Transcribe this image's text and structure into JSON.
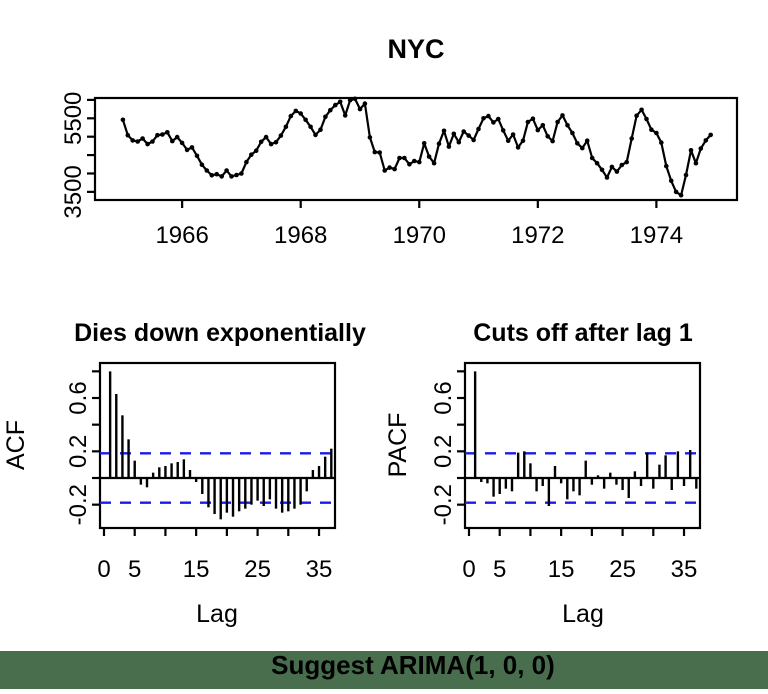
{
  "page": {
    "note_text": "Suggest ARIMA(1, 0, 0)",
    "note_color": "#e32222",
    "banner_color": "#486e4e",
    "background": "#ffffff"
  },
  "colors": {
    "series": "#000000",
    "conf_band": "#1a1aee",
    "red_text": "#e32222"
  },
  "chart_data": [
    {
      "id": "top_chart",
      "type": "line",
      "title": "NYC",
      "xlabel": "",
      "ylabel": "",
      "x_tick_labels": [
        "1966",
        "1968",
        "1970",
        "1972",
        "1974"
      ],
      "x_tick_values": [
        1966,
        1968,
        1970,
        1972,
        1974
      ],
      "y_tick_values": [
        3500,
        4000,
        4500,
        5000,
        5500,
        6000
      ],
      "y_tick_labels_shown": [
        "3500",
        "5500"
      ],
      "xlim": [
        1964.53,
        1975.36
      ],
      "ylim": [
        3279,
        6052
      ],
      "start_year": 1965,
      "points_per_year": 12,
      "values": [
        5460,
        5040,
        4900,
        4870,
        4950,
        4800,
        4870,
        5040,
        5060,
        5120,
        4880,
        4990,
        4830,
        4640,
        4710,
        4480,
        4240,
        4080,
        3950,
        3980,
        3920,
        4080,
        3920,
        3960,
        4000,
        4310,
        4510,
        4620,
        4860,
        4990,
        4800,
        4850,
        5030,
        5270,
        5560,
        5700,
        5630,
        5460,
        5270,
        5050,
        5190,
        5540,
        5720,
        5860,
        5950,
        5580,
        5990,
        6030,
        5750,
        5900,
        4980,
        4580,
        4570,
        4080,
        4160,
        4120,
        4420,
        4420,
        4250,
        4340,
        4310,
        4820,
        4460,
        4280,
        4810,
        5160,
        4730,
        5080,
        4850,
        5140,
        5030,
        4910,
        5210,
        5500,
        5560,
        5390,
        5480,
        5170,
        4890,
        5060,
        4710,
        4890,
        5400,
        5490,
        5180,
        5310,
        5010,
        4880,
        5400,
        5580,
        5310,
        5100,
        4820,
        4690,
        4890,
        4420,
        4280,
        4100,
        3890,
        4180,
        4050,
        4230,
        4310,
        4950,
        5570,
        5730,
        5480,
        5190,
        5100,
        4840,
        4200,
        3800,
        3500,
        3410,
        3960,
        4630,
        4280,
        4680,
        4900,
        5050
      ]
    },
    {
      "id": "acf_chart",
      "type": "bar",
      "title": "Dies down exponentially",
      "title_color": "#e32222",
      "xlabel": "Lag",
      "ylabel": "ACF",
      "x_tick_values": [
        0,
        5,
        10,
        15,
        20,
        25,
        30,
        35
      ],
      "x_tick_labels_shown": [
        "0",
        "5",
        "15",
        "25",
        "35"
      ],
      "y_tick_values": [
        0.8,
        0.6,
        0.4,
        0.2,
        0.0,
        -0.2
      ],
      "y_tick_labels_shown": [
        "0.6",
        "0.2",
        "-0.2"
      ],
      "xlim": [
        -0.65,
        37.6
      ],
      "ylim": [
        -0.375,
        0.8625
      ],
      "conf_band": 0.185,
      "lag_start": 1,
      "values": [
        0.8,
        0.63,
        0.47,
        0.29,
        0.13,
        -0.05,
        -0.07,
        0.04,
        0.08,
        0.09,
        0.11,
        0.12,
        0.14,
        0.06,
        -0.03,
        -0.12,
        -0.22,
        -0.27,
        -0.31,
        -0.26,
        -0.29,
        -0.25,
        -0.23,
        -0.2,
        -0.17,
        -0.21,
        -0.16,
        -0.23,
        -0.26,
        -0.25,
        -0.23,
        -0.2,
        -0.1,
        0.06,
        0.09,
        0.16,
        0.22
      ]
    },
    {
      "id": "pacf_chart",
      "type": "bar",
      "title": "Cuts off after lag 1",
      "title_color": "#e32222",
      "xlabel": "Lag",
      "ylabel": "PACF",
      "x_tick_values": [
        0,
        5,
        10,
        15,
        20,
        25,
        30,
        35
      ],
      "x_tick_labels_shown": [
        "0",
        "5",
        "15",
        "25",
        "35"
      ],
      "y_tick_values": [
        0.8,
        0.6,
        0.4,
        0.2,
        0.0,
        -0.2
      ],
      "y_tick_labels_shown": [
        "0.6",
        "0.2",
        "-0.2"
      ],
      "xlim": [
        -0.65,
        37.6
      ],
      "ylim": [
        -0.375,
        0.8625
      ],
      "conf_band": 0.185,
      "lag_start": 1,
      "values": [
        0.8,
        -0.03,
        -0.04,
        -0.14,
        -0.12,
        -0.08,
        -0.1,
        0.19,
        0.2,
        0.11,
        -0.1,
        -0.06,
        -0.21,
        0.09,
        -0.04,
        -0.16,
        -0.1,
        -0.13,
        0.13,
        -0.05,
        0.02,
        -0.08,
        0.04,
        -0.05,
        -0.09,
        -0.15,
        0.05,
        -0.06,
        0.19,
        -0.08,
        0.1,
        0.17,
        -0.09,
        0.2,
        -0.06,
        0.21,
        -0.08
      ]
    }
  ]
}
